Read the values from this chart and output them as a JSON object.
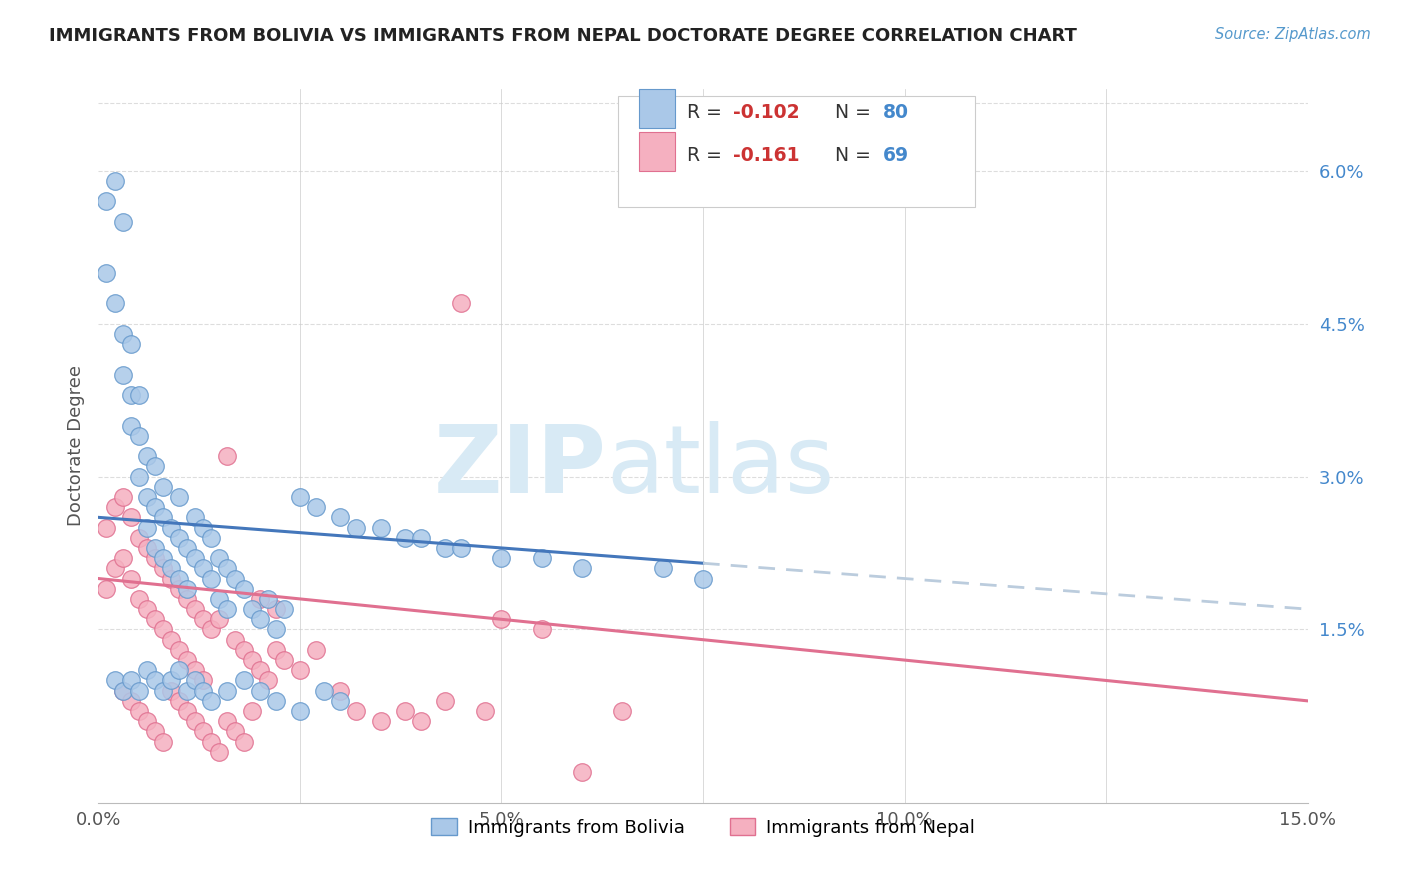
{
  "title": "IMMIGRANTS FROM BOLIVIA VS IMMIGRANTS FROM NEPAL DOCTORATE DEGREE CORRELATION CHART",
  "source": "Source: ZipAtlas.com",
  "ylabel": "Doctorate Degree",
  "x_min": 0.0,
  "x_max": 0.15,
  "y_min": -0.002,
  "y_max": 0.068,
  "x_ticks": [
    0.0,
    0.05,
    0.1,
    0.15
  ],
  "x_tick_labels": [
    "0.0%",
    "5.0%",
    "10.0%",
    "15.0%"
  ],
  "y_ticks_right": [
    0.015,
    0.03,
    0.045,
    0.06
  ],
  "y_tick_labels_right": [
    "1.5%",
    "3.0%",
    "4.5%",
    "6.0%"
  ],
  "bolivia_color": "#aac8e8",
  "nepal_color": "#f5b0c0",
  "bolivia_edge": "#6699cc",
  "nepal_edge": "#e07090",
  "trend_bolivia_color": "#4477bb",
  "trend_nepal_color": "#e07090",
  "trend_extend_color": "#bbccdd",
  "watermark_zip": "ZIP",
  "watermark_atlas": "atlas",
  "watermark_color": "#d8eaf5",
  "background_color": "#ffffff",
  "grid_color": "#dddddd",
  "bolivia_intercept": 0.026,
  "bolivia_slope": -0.06,
  "nepal_intercept": 0.02,
  "nepal_slope": -0.08,
  "bolivia_scatter_x": [
    0.001,
    0.001,
    0.002,
    0.002,
    0.003,
    0.003,
    0.003,
    0.004,
    0.004,
    0.004,
    0.005,
    0.005,
    0.005,
    0.006,
    0.006,
    0.006,
    0.007,
    0.007,
    0.007,
    0.008,
    0.008,
    0.008,
    0.009,
    0.009,
    0.01,
    0.01,
    0.01,
    0.011,
    0.011,
    0.012,
    0.012,
    0.013,
    0.013,
    0.014,
    0.014,
    0.015,
    0.015,
    0.016,
    0.016,
    0.017,
    0.018,
    0.019,
    0.02,
    0.021,
    0.022,
    0.023,
    0.025,
    0.027,
    0.03,
    0.032,
    0.035,
    0.038,
    0.04,
    0.043,
    0.045,
    0.05,
    0.055,
    0.06,
    0.07,
    0.075,
    0.002,
    0.003,
    0.004,
    0.005,
    0.006,
    0.007,
    0.008,
    0.009,
    0.01,
    0.011,
    0.012,
    0.013,
    0.014,
    0.016,
    0.018,
    0.02,
    0.022,
    0.025,
    0.028,
    0.03
  ],
  "bolivia_scatter_y": [
    0.057,
    0.05,
    0.059,
    0.047,
    0.055,
    0.044,
    0.04,
    0.043,
    0.038,
    0.035,
    0.034,
    0.03,
    0.038,
    0.028,
    0.025,
    0.032,
    0.027,
    0.023,
    0.031,
    0.026,
    0.022,
    0.029,
    0.025,
    0.021,
    0.024,
    0.02,
    0.028,
    0.023,
    0.019,
    0.022,
    0.026,
    0.021,
    0.025,
    0.02,
    0.024,
    0.022,
    0.018,
    0.021,
    0.017,
    0.02,
    0.019,
    0.017,
    0.016,
    0.018,
    0.015,
    0.017,
    0.028,
    0.027,
    0.026,
    0.025,
    0.025,
    0.024,
    0.024,
    0.023,
    0.023,
    0.022,
    0.022,
    0.021,
    0.021,
    0.02,
    0.01,
    0.009,
    0.01,
    0.009,
    0.011,
    0.01,
    0.009,
    0.01,
    0.011,
    0.009,
    0.01,
    0.009,
    0.008,
    0.009,
    0.01,
    0.009,
    0.008,
    0.007,
    0.009,
    0.008
  ],
  "nepal_scatter_x": [
    0.001,
    0.001,
    0.002,
    0.002,
    0.003,
    0.003,
    0.004,
    0.004,
    0.005,
    0.005,
    0.006,
    0.006,
    0.007,
    0.007,
    0.008,
    0.008,
    0.009,
    0.009,
    0.01,
    0.01,
    0.011,
    0.011,
    0.012,
    0.012,
    0.013,
    0.013,
    0.014,
    0.015,
    0.016,
    0.017,
    0.018,
    0.019,
    0.02,
    0.021,
    0.022,
    0.023,
    0.025,
    0.027,
    0.03,
    0.032,
    0.035,
    0.038,
    0.04,
    0.043,
    0.045,
    0.048,
    0.05,
    0.055,
    0.06,
    0.065,
    0.003,
    0.004,
    0.005,
    0.006,
    0.007,
    0.008,
    0.009,
    0.01,
    0.011,
    0.012,
    0.013,
    0.014,
    0.015,
    0.016,
    0.017,
    0.018,
    0.019,
    0.02,
    0.022
  ],
  "nepal_scatter_y": [
    0.025,
    0.019,
    0.027,
    0.021,
    0.028,
    0.022,
    0.026,
    0.02,
    0.024,
    0.018,
    0.023,
    0.017,
    0.022,
    0.016,
    0.021,
    0.015,
    0.02,
    0.014,
    0.019,
    0.013,
    0.018,
    0.012,
    0.017,
    0.011,
    0.016,
    0.01,
    0.015,
    0.016,
    0.032,
    0.014,
    0.013,
    0.012,
    0.011,
    0.01,
    0.013,
    0.012,
    0.011,
    0.013,
    0.009,
    0.007,
    0.006,
    0.007,
    0.006,
    0.008,
    0.047,
    0.007,
    0.016,
    0.015,
    0.001,
    0.007,
    0.009,
    0.008,
    0.007,
    0.006,
    0.005,
    0.004,
    0.009,
    0.008,
    0.007,
    0.006,
    0.005,
    0.004,
    0.003,
    0.006,
    0.005,
    0.004,
    0.007,
    0.018,
    0.017
  ]
}
